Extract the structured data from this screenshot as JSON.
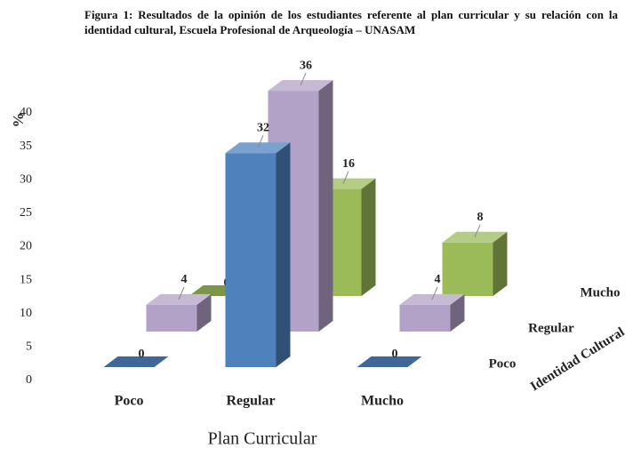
{
  "chart_data": {
    "type": "bar3d",
    "title": "Figura 1: Resultados de la opinión de los estudiantes referente al plan curricular y su relación con la identidad cultural, Escuela Profesional de Arqueología – UNASAM",
    "y_label": "%",
    "x_label": "Plan Curricular",
    "z_label": "Identidad Cultural",
    "categories": [
      "Poco",
      "Regular",
      "Mucho"
    ],
    "series": [
      {
        "name": "Poco",
        "color": "#4f81bd",
        "values": [
          0,
          32,
          0
        ]
      },
      {
        "name": "Regular",
        "color": "#b3a2c7",
        "values": [
          4,
          36,
          4
        ]
      },
      {
        "name": "Mucho",
        "color": "#9bbb59",
        "values": [
          0,
          16,
          8
        ]
      }
    ],
    "ylim": [
      0,
      40
    ],
    "yticks": [
      0,
      5,
      10,
      15,
      20,
      25,
      30,
      35,
      40
    ]
  }
}
